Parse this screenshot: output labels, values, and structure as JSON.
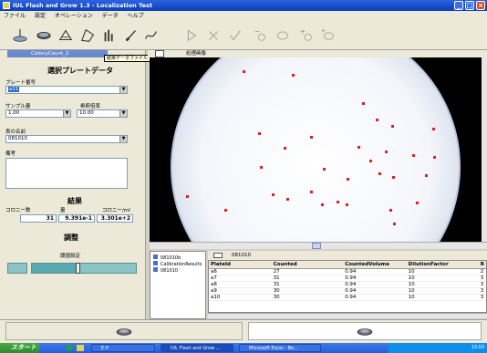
{
  "window": {
    "title": "IUL Flash and Grow 1.3 - Localization Test"
  },
  "menu": [
    "ファイル",
    "設定",
    "オペレーション",
    "データ",
    "ヘルプ"
  ],
  "left": {
    "tab_label": "ColonyCount_2",
    "tooltip": "結果データファイル",
    "section_title": "選択プレートデータ",
    "plate_number_label": "プレート番号",
    "plate_number_value": "a11",
    "sample_volume_label": "サンプル量",
    "sample_volume_value": "1.00",
    "dilution_label": "希釈倍率",
    "dilution_value": "10.00",
    "table_name_label": "表の名前",
    "table_name_value": "081010",
    "notes_label": "備考",
    "results_title": "結果",
    "colony_count_label": "コロニー数",
    "amount_label": "量",
    "colony_per_ml_label": "コロニー/ml",
    "colony_count_value": "31",
    "amount_value": "9.391e-1",
    "colony_per_ml_value": "3.301e+2",
    "adjust_title": "調整",
    "sensitivity_label": "閾値設定",
    "sensitivity_level": 0.45
  },
  "image_tab": "処理画像",
  "tree": [
    "081010b",
    "CalibrationResults",
    "081010"
  ],
  "table": {
    "tab_label": "081010",
    "columns": [
      "PlateId",
      "Counted",
      "CountedVolume",
      "DilutionFactor",
      "R"
    ],
    "rows": [
      [
        "a6",
        "27",
        "0.94",
        "10",
        "2"
      ],
      [
        "a7",
        "31",
        "0.94",
        "10",
        "3"
      ],
      [
        "a8",
        "31",
        "0.94",
        "10",
        "3"
      ],
      [
        "a9",
        "30",
        "0.94",
        "10",
        "3"
      ],
      [
        "a10",
        "30",
        "0.94",
        "10",
        "3"
      ]
    ]
  },
  "taskbar": {
    "start": "スタート",
    "items": [
      "E:¥",
      "IUL Flash and Grow ...",
      "Microsoft Excel - Bo..."
    ],
    "clock": "13:03"
  }
}
